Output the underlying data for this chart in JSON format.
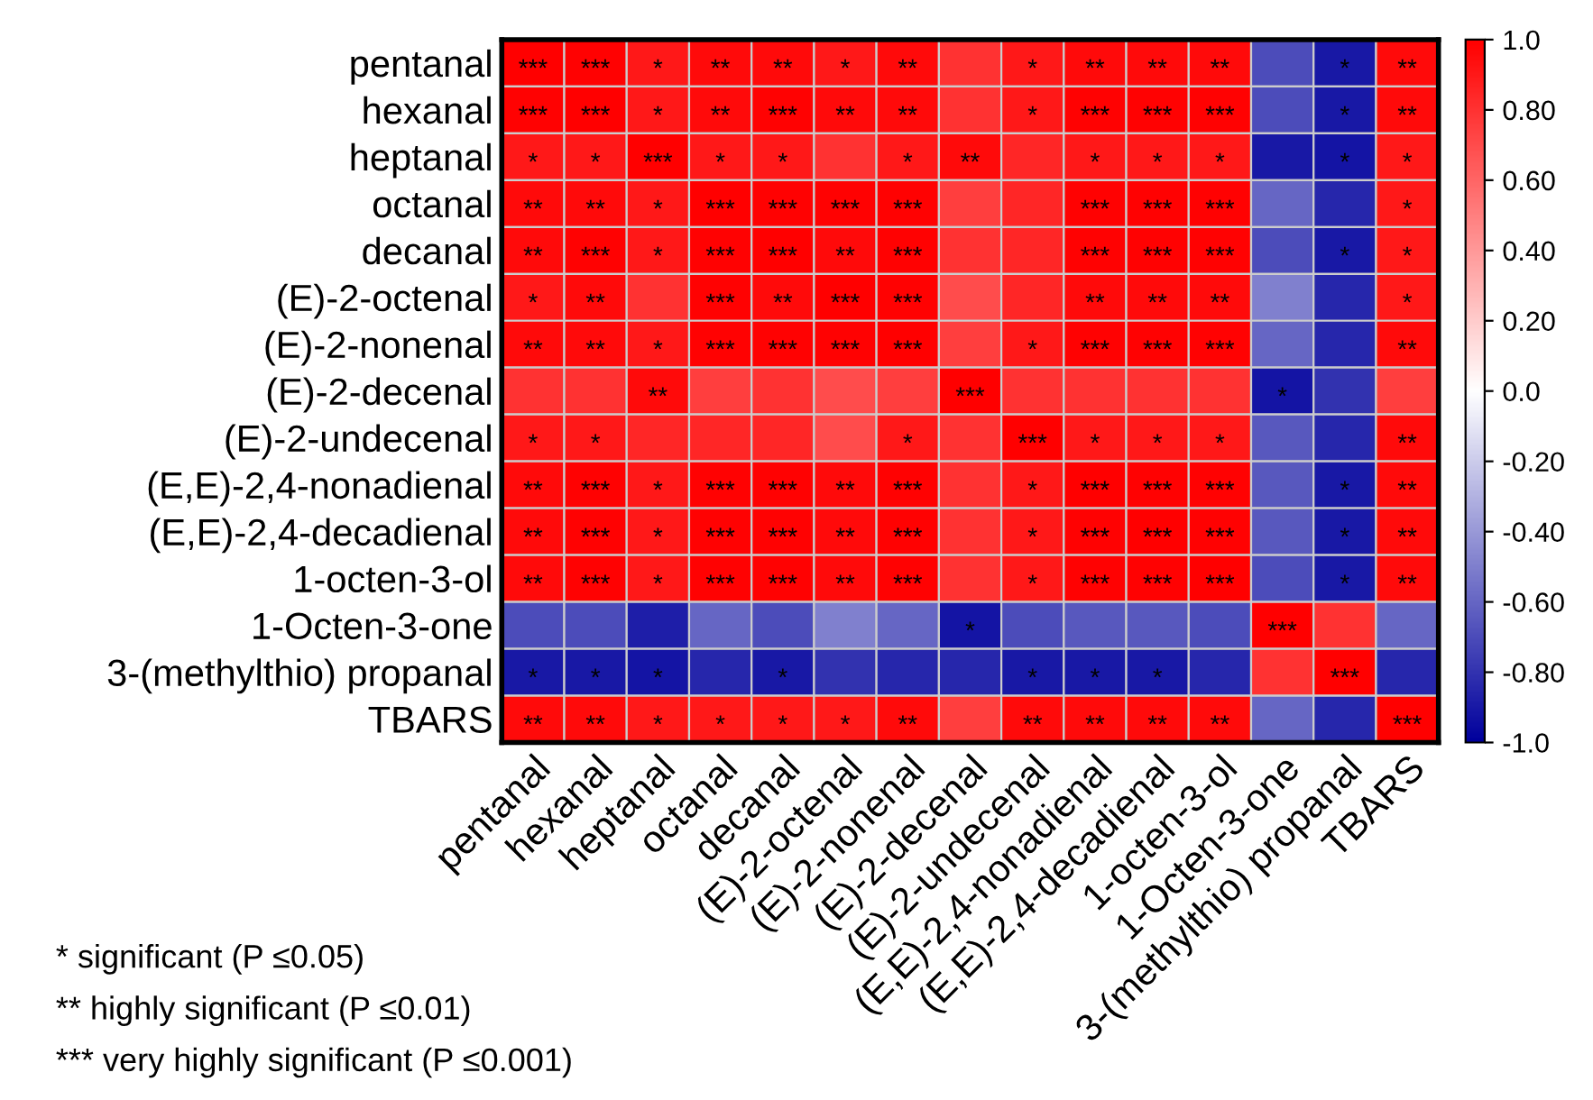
{
  "chart_data": {
    "type": "heatmap",
    "categories": [
      "pentanal",
      "hexanal",
      "heptanal",
      "octanal",
      "decanal",
      "(E)-2-octenal",
      "(E)-2-nonenal",
      "(E)-2-decenal",
      "(E)-2-undecenal",
      "(E,E)-2,4-nonadienal",
      "(E,E)-2,4-decadienal",
      "1-octen-3-ol",
      "1-Octen-3-one",
      "3-(methylthio) propanal",
      "TBARS"
    ],
    "y_categories": [
      "pentanal",
      "hexanal",
      "heptanal",
      "octanal",
      "decanal",
      "(E)-2-octenal",
      "(E)-2-nonenal",
      "(E)-2-decenal",
      "(E)-2-undecenal",
      "(E,E)-2,4-nonadienal",
      "(E,E)-2,4-decadienal",
      "1-octen-3-ol",
      "1-Octen-3-one",
      "3-(methylthio) propanal",
      "TBARS"
    ],
    "cells": [
      [
        1.0,
        0.99,
        0.9,
        0.96,
        0.96,
        0.9,
        0.96,
        0.8,
        0.9,
        0.96,
        0.96,
        0.96,
        -0.7,
        -0.9,
        0.96
      ],
      [
        0.99,
        1.0,
        0.9,
        0.96,
        0.99,
        0.96,
        0.96,
        0.8,
        0.9,
        0.99,
        0.99,
        0.99,
        -0.7,
        -0.9,
        0.96
      ],
      [
        0.9,
        0.9,
        1.0,
        0.9,
        0.9,
        0.8,
        0.9,
        0.96,
        0.85,
        0.9,
        0.9,
        0.9,
        -0.9,
        -0.92,
        0.9
      ],
      [
        0.96,
        0.96,
        0.9,
        1.0,
        0.99,
        0.99,
        0.99,
        0.75,
        0.85,
        0.99,
        0.99,
        0.99,
        -0.6,
        -0.85,
        0.9
      ],
      [
        0.96,
        0.99,
        0.9,
        0.99,
        1.0,
        0.96,
        0.99,
        0.8,
        0.85,
        0.99,
        0.99,
        0.99,
        -0.7,
        -0.9,
        0.9
      ],
      [
        0.9,
        0.96,
        0.8,
        0.99,
        0.96,
        1.0,
        0.99,
        0.7,
        0.85,
        0.96,
        0.96,
        0.96,
        -0.5,
        -0.85,
        0.9
      ],
      [
        0.96,
        0.96,
        0.9,
        0.99,
        0.99,
        0.99,
        1.0,
        0.75,
        0.9,
        0.99,
        0.99,
        0.99,
        -0.6,
        -0.85,
        0.96
      ],
      [
        0.8,
        0.8,
        0.96,
        0.75,
        0.8,
        0.7,
        0.75,
        1.0,
        0.8,
        0.8,
        0.8,
        0.8,
        -0.92,
        -0.8,
        0.75
      ],
      [
        0.9,
        0.9,
        0.85,
        0.85,
        0.85,
        0.7,
        0.9,
        0.8,
        1.0,
        0.9,
        0.9,
        0.9,
        -0.65,
        -0.85,
        0.96
      ],
      [
        0.96,
        0.99,
        0.9,
        0.99,
        0.99,
        0.96,
        0.99,
        0.8,
        0.9,
        1.0,
        0.99,
        0.99,
        -0.65,
        -0.9,
        0.96
      ],
      [
        0.96,
        0.99,
        0.9,
        0.99,
        0.99,
        0.96,
        0.99,
        0.8,
        0.9,
        0.99,
        1.0,
        0.99,
        -0.65,
        -0.9,
        0.96
      ],
      [
        0.96,
        0.99,
        0.9,
        0.99,
        0.99,
        0.96,
        0.99,
        0.8,
        0.9,
        0.99,
        0.99,
        1.0,
        -0.7,
        -0.9,
        0.96
      ],
      [
        -0.7,
        -0.7,
        -0.88,
        -0.6,
        -0.7,
        -0.5,
        -0.6,
        -0.92,
        -0.7,
        -0.65,
        -0.65,
        -0.7,
        1.0,
        0.8,
        -0.6
      ],
      [
        -0.9,
        -0.9,
        -0.92,
        -0.85,
        -0.9,
        -0.8,
        -0.85,
        -0.85,
        -0.9,
        -0.9,
        -0.9,
        -0.85,
        0.8,
        1.0,
        -0.85
      ],
      [
        0.96,
        0.96,
        0.9,
        0.9,
        0.9,
        0.9,
        0.96,
        0.75,
        0.96,
        0.96,
        0.96,
        0.96,
        -0.6,
        -0.85,
        1.0
      ]
    ],
    "cell_labels": [
      [
        "***",
        "***",
        "*",
        "**",
        "**",
        "*",
        "**",
        null,
        "*",
        "**",
        "**",
        "**",
        null,
        "*",
        "**"
      ],
      [
        "***",
        "***",
        "*",
        "**",
        "***",
        "**",
        "**",
        null,
        "*",
        "***",
        "***",
        "***",
        null,
        "*",
        "**"
      ],
      [
        "*",
        "*",
        "***",
        "*",
        "*",
        null,
        "*",
        "**",
        null,
        "*",
        "*",
        "*",
        null,
        "*",
        "*"
      ],
      [
        "**",
        "**",
        "*",
        "***",
        "***",
        "***",
        "***",
        null,
        null,
        "***",
        "***",
        "***",
        null,
        null,
        "*"
      ],
      [
        "**",
        "***",
        "*",
        "***",
        "***",
        "**",
        "***",
        null,
        null,
        "***",
        "***",
        "***",
        null,
        "*",
        "*"
      ],
      [
        "*",
        "**",
        null,
        "***",
        "**",
        "***",
        "***",
        null,
        null,
        "**",
        "**",
        "**",
        null,
        null,
        "*"
      ],
      [
        "**",
        "**",
        "*",
        "***",
        "***",
        "***",
        "***",
        null,
        "*",
        "***",
        "***",
        "***",
        null,
        null,
        "**"
      ],
      [
        null,
        null,
        "**",
        null,
        null,
        null,
        null,
        "***",
        null,
        null,
        null,
        null,
        "*",
        null,
        null
      ],
      [
        "*",
        "*",
        null,
        null,
        null,
        null,
        "*",
        null,
        "***",
        "*",
        "*",
        "*",
        null,
        null,
        "**"
      ],
      [
        "**",
        "***",
        "*",
        "***",
        "***",
        "**",
        "***",
        null,
        "*",
        "***",
        "***",
        "***",
        null,
        "*",
        "**"
      ],
      [
        "**",
        "***",
        "*",
        "***",
        "***",
        "**",
        "***",
        null,
        "*",
        "***",
        "***",
        "***",
        null,
        "*",
        "**"
      ],
      [
        "**",
        "***",
        "*",
        "***",
        "***",
        "**",
        "***",
        null,
        "*",
        "***",
        "***",
        "***",
        null,
        "*",
        "**"
      ],
      [
        null,
        null,
        null,
        null,
        null,
        null,
        null,
        "*",
        null,
        null,
        null,
        null,
        "***",
        null,
        null
      ],
      [
        "*",
        "*",
        "*",
        null,
        "*",
        null,
        null,
        null,
        "*",
        "*",
        "*",
        null,
        null,
        "***",
        null
      ],
      [
        "**",
        "**",
        "*",
        "*",
        "*",
        "*",
        "**",
        null,
        "**",
        "**",
        "**",
        "**",
        null,
        null,
        "***"
      ]
    ],
    "clim": [
      -1.0,
      1.0
    ],
    "cticks": [
      {
        "value": 1.0,
        "label": "1.0"
      },
      {
        "value": 0.8,
        "label": "0.80"
      },
      {
        "value": 0.6,
        "label": "0.60"
      },
      {
        "value": 0.4,
        "label": "0.40"
      },
      {
        "value": 0.2,
        "label": "0.20"
      },
      {
        "value": 0.0,
        "label": "0.0"
      },
      {
        "value": -0.2,
        "label": "-0.20"
      },
      {
        "value": -0.4,
        "label": "-0.40"
      },
      {
        "value": -0.6,
        "label": "-0.60"
      },
      {
        "value": -0.8,
        "label": "-0.80"
      },
      {
        "value": -1.0,
        "label": "-1.0"
      }
    ],
    "annotations": [
      "* significant (P ≤0.05)",
      "** highly significant (P ≤0.01)",
      "*** very highly significant (P ≤0.001)"
    ]
  }
}
